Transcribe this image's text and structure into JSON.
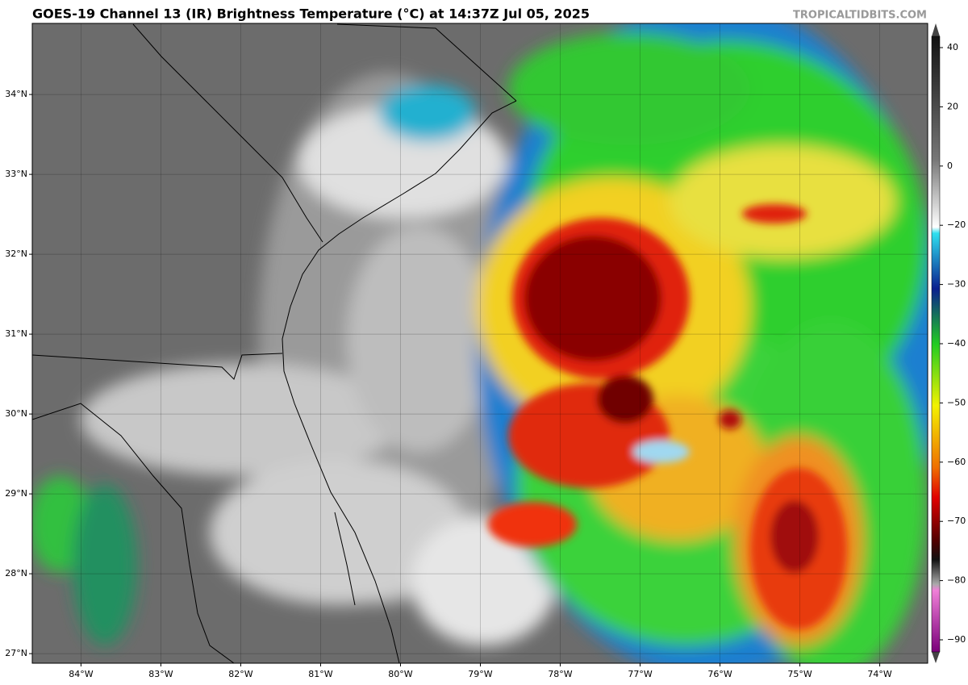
{
  "header": {
    "title": "GOES-19 Channel 13 (IR) Brightness Temperature (°C) at 14:37Z Jul 05, 2025",
    "credit": "TROPICALTIDBITS.COM"
  },
  "map": {
    "lat_lim": [
      26.88,
      34.89
    ],
    "lon_lim": [
      -84.61,
      -73.4
    ],
    "lat_ticks": [
      {
        "value": 34,
        "label": "34°N"
      },
      {
        "value": 33,
        "label": "33°N"
      },
      {
        "value": 32,
        "label": "32°N"
      },
      {
        "value": 31,
        "label": "31°N"
      },
      {
        "value": 30,
        "label": "30°N"
      },
      {
        "value": 29,
        "label": "29°N"
      },
      {
        "value": 28,
        "label": "28°N"
      },
      {
        "value": 27,
        "label": "27°N"
      }
    ],
    "lon_ticks": [
      {
        "value": -84,
        "label": "84°W"
      },
      {
        "value": -83,
        "label": "83°W"
      },
      {
        "value": -82,
        "label": "82°W"
      },
      {
        "value": -81,
        "label": "81°W"
      },
      {
        "value": -80,
        "label": "80°W"
      },
      {
        "value": -79,
        "label": "79°W"
      },
      {
        "value": -78,
        "label": "78°W"
      },
      {
        "value": -77,
        "label": "77°W"
      },
      {
        "value": -76,
        "label": "76°W"
      },
      {
        "value": -75,
        "label": "75°W"
      },
      {
        "value": -74,
        "label": "74°W"
      }
    ]
  },
  "colorbar": {
    "ticks": [
      40,
      20,
      0,
      {
        "value": -20,
        "label": "−20"
      },
      {
        "value": -30,
        "label": "−30"
      },
      {
        "value": -40,
        "label": "−40"
      },
      {
        "value": -50,
        "label": "−50"
      },
      {
        "value": -60,
        "label": "−60"
      },
      {
        "value": -70,
        "label": "−70"
      },
      {
        "value": -80,
        "label": "−80"
      },
      {
        "value": -90,
        "label": "−90"
      }
    ]
  }
}
